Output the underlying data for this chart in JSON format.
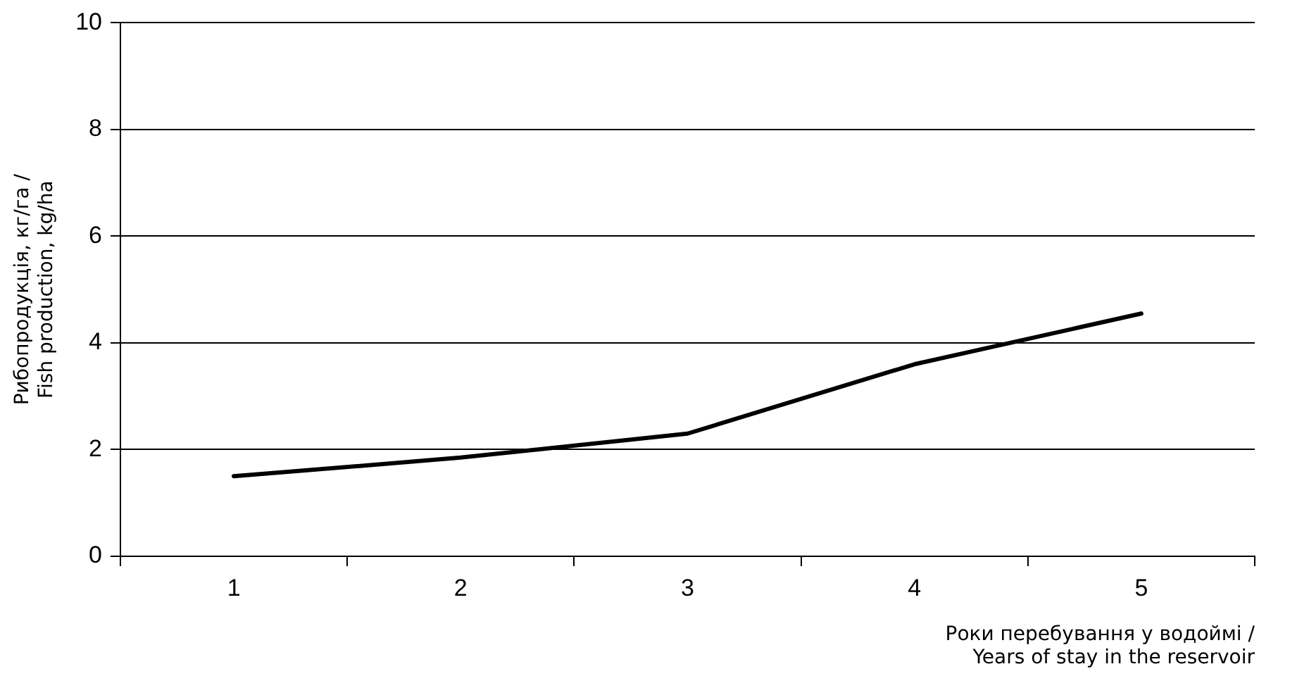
{
  "chart_data": {
    "type": "line",
    "xlabel": "Роки перебування у водоймі / Years of stay in the reservoir",
    "ylabel": "Рибопродукція, кг/га / Fish production, kg/ha",
    "categories": [
      "1",
      "2",
      "3",
      "4",
      "5"
    ],
    "series": [
      {
        "color": "#000000",
        "values": [
          1.5,
          1.85,
          2.3,
          3.6,
          4.55
        ]
      }
    ],
    "ylim": [
      0,
      10
    ],
    "yticks": [
      0,
      2,
      4,
      6,
      8,
      10
    ],
    "grid": "y",
    "legend": false,
    "marker": "none",
    "line_style": "solid"
  }
}
